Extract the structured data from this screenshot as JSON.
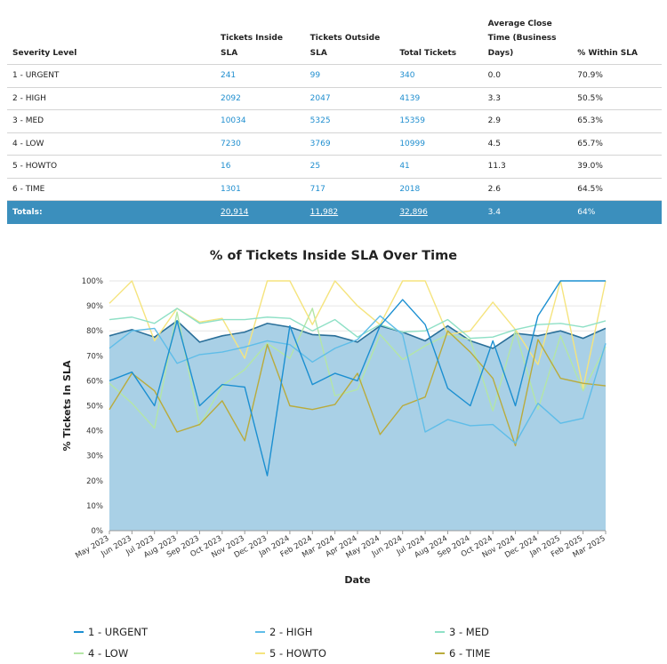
{
  "table": {
    "headers": {
      "severity": "Severity Level",
      "inside": "Tickets Inside SLA",
      "outside": "Tickets Outside SLA",
      "total": "Total Tickets",
      "avg_close": "Average Close Time (Business Days)",
      "pct": "% Within SLA"
    },
    "rows": [
      {
        "severity": "1 - URGENT",
        "inside": "241",
        "outside": "99",
        "total": "340",
        "avg_close": "0.0",
        "pct": "70.9%"
      },
      {
        "severity": "2 - HIGH",
        "inside": "2092",
        "outside": "2047",
        "total": "4139",
        "avg_close": "3.3",
        "pct": "50.5%"
      },
      {
        "severity": "3 - MED",
        "inside": "10034",
        "outside": "5325",
        "total": "15359",
        "avg_close": "2.9",
        "pct": "65.3%"
      },
      {
        "severity": "4 - LOW",
        "inside": "7230",
        "outside": "3769",
        "total": "10999",
        "avg_close": "4.5",
        "pct": "65.7%"
      },
      {
        "severity": "5 - HOWTO",
        "inside": "16",
        "outside": "25",
        "total": "41",
        "avg_close": "11.3",
        "pct": "39.0%"
      },
      {
        "severity": "6 - TIME",
        "inside": "1301",
        "outside": "717",
        "total": "2018",
        "avg_close": "2.6",
        "pct": "64.5%"
      }
    ],
    "totals": {
      "label": "Totals:",
      "inside": "20,914",
      "outside": "11,982",
      "total": "32,896",
      "avg_close": "3.4",
      "pct": "64%"
    }
  },
  "chart_data": {
    "type": "line",
    "title": "% of Tickets Inside SLA Over Time",
    "xlabel": "Date",
    "ylabel": "% Tickets In SLA",
    "ylim": [
      0,
      100
    ],
    "yticks": [
      "0%",
      "10%",
      "20%",
      "30%",
      "40%",
      "50%",
      "60%",
      "70%",
      "80%",
      "90%",
      "100%"
    ],
    "grid": true,
    "legend_position": "bottom",
    "x": [
      "May 2023",
      "Jun 2023",
      "Jul 2023",
      "Aug 2023",
      "Sep 2023",
      "Oct 2023",
      "Nov 2023",
      "Dec 2023",
      "Jan 2024",
      "Feb 2024",
      "Mar 2024",
      "Apr 2024",
      "May 2024",
      "Jun 2024",
      "Jul 2024",
      "Aug 2024",
      "Sep 2024",
      "Oct 2024",
      "Nov 2024",
      "Dec 2024",
      "Jan 2025",
      "Feb 2025",
      "Mar 2025"
    ],
    "area": {
      "values": [
        78,
        80.5,
        77.5,
        84,
        75.5,
        78,
        79.5,
        83,
        81.5,
        78.5,
        78,
        75.5,
        82,
        79.5,
        76,
        82,
        76,
        73,
        79,
        78,
        80,
        77,
        81
      ],
      "color": "#a9d0e6"
    },
    "series": [
      {
        "name": "1 - URGENT",
        "color": "#1b8fd1",
        "values": [
          60,
          63.5,
          50,
          84,
          50,
          58.5,
          57.5,
          22,
          82,
          58.5,
          63,
          60,
          82,
          92.5,
          82.5,
          57,
          50,
          76,
          50,
          86,
          100,
          100,
          100
        ]
      },
      {
        "name": "2 - HIGH",
        "color": "#5fbde8",
        "values": [
          73,
          80,
          81,
          67,
          70.5,
          71.5,
          73.5,
          76,
          74.5,
          67.5,
          73,
          76.5,
          86,
          78.5,
          39.5,
          44.5,
          42,
          42.5,
          35,
          51,
          43,
          45,
          75
        ]
      },
      {
        "name": "3 - MED",
        "color": "#8fe0c6",
        "values": [
          84.5,
          85.5,
          83,
          89,
          83,
          84.5,
          84.5,
          85.5,
          85,
          80,
          84.5,
          77.5,
          82.5,
          79.5,
          80,
          84.5,
          77,
          77.5,
          80.5,
          82.5,
          83,
          81.5,
          84
        ]
      },
      {
        "name": "4 - LOW",
        "color": "#b4e6a6",
        "values": [
          59,
          51,
          41,
          87.5,
          42,
          58,
          64.5,
          75,
          69,
          89,
          54,
          56.5,
          78.5,
          68.5,
          74,
          78.5,
          76.5,
          48,
          80,
          48.5,
          78,
          56,
          73.5
        ]
      },
      {
        "name": "5 - HOWTO",
        "color": "#f5e47e",
        "values": [
          91,
          100,
          76,
          89,
          83.5,
          85,
          69,
          100,
          100,
          82.5,
          100,
          90,
          82.5,
          100,
          100,
          78.5,
          80,
          91.5,
          80.5,
          66.5,
          100,
          57,
          100
        ]
      },
      {
        "name": "6 - TIME",
        "color": "#b9ab3c",
        "values": [
          48.5,
          63,
          56,
          39.5,
          42.5,
          52,
          36,
          74.5,
          50,
          48.5,
          50.5,
          63,
          38.5,
          50,
          53.5,
          80,
          71.5,
          61,
          34,
          76.5,
          61,
          59,
          58
        ]
      }
    ]
  }
}
